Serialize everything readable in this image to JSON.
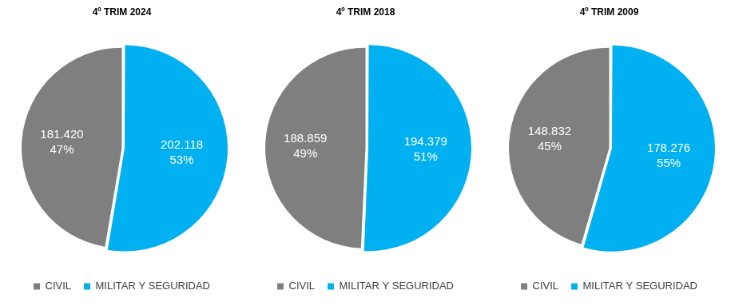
{
  "chart_data": [
    {
      "type": "pie",
      "title": "4º TRIM 2024",
      "categories": [
        "CIVIL",
        "MILITAR Y SEGURIDAD"
      ],
      "colors": [
        "#7f7f7f",
        "#00b0f0"
      ],
      "values": [
        181420,
        202118
      ],
      "value_labels": [
        "181.420",
        "202.118"
      ],
      "percentages": [
        47,
        53
      ],
      "percentage_labels": [
        "47%",
        "53%"
      ],
      "data_labels": true,
      "legend": "bottom"
    },
    {
      "type": "pie",
      "title": "4º TRIM 2018",
      "categories": [
        "CIVIL",
        "MILITAR Y SEGURIDAD"
      ],
      "colors": [
        "#7f7f7f",
        "#00b0f0"
      ],
      "values": [
        188859,
        194379
      ],
      "value_labels": [
        "188.859",
        "194.379"
      ],
      "percentages": [
        49,
        51
      ],
      "percentage_labels": [
        "49%",
        "51%"
      ],
      "data_labels": true,
      "legend": "bottom"
    },
    {
      "type": "pie",
      "title": "4º TRIM 2009",
      "categories": [
        "CIVIL",
        "MILITAR Y SEGURIDAD"
      ],
      "colors": [
        "#7f7f7f",
        "#00b0f0"
      ],
      "values": [
        148832,
        178276
      ],
      "value_labels": [
        "148.832",
        "178.276"
      ],
      "percentages": [
        45,
        55
      ],
      "percentage_labels": [
        "45%",
        "55%"
      ],
      "data_labels": true,
      "legend": "bottom"
    }
  ]
}
